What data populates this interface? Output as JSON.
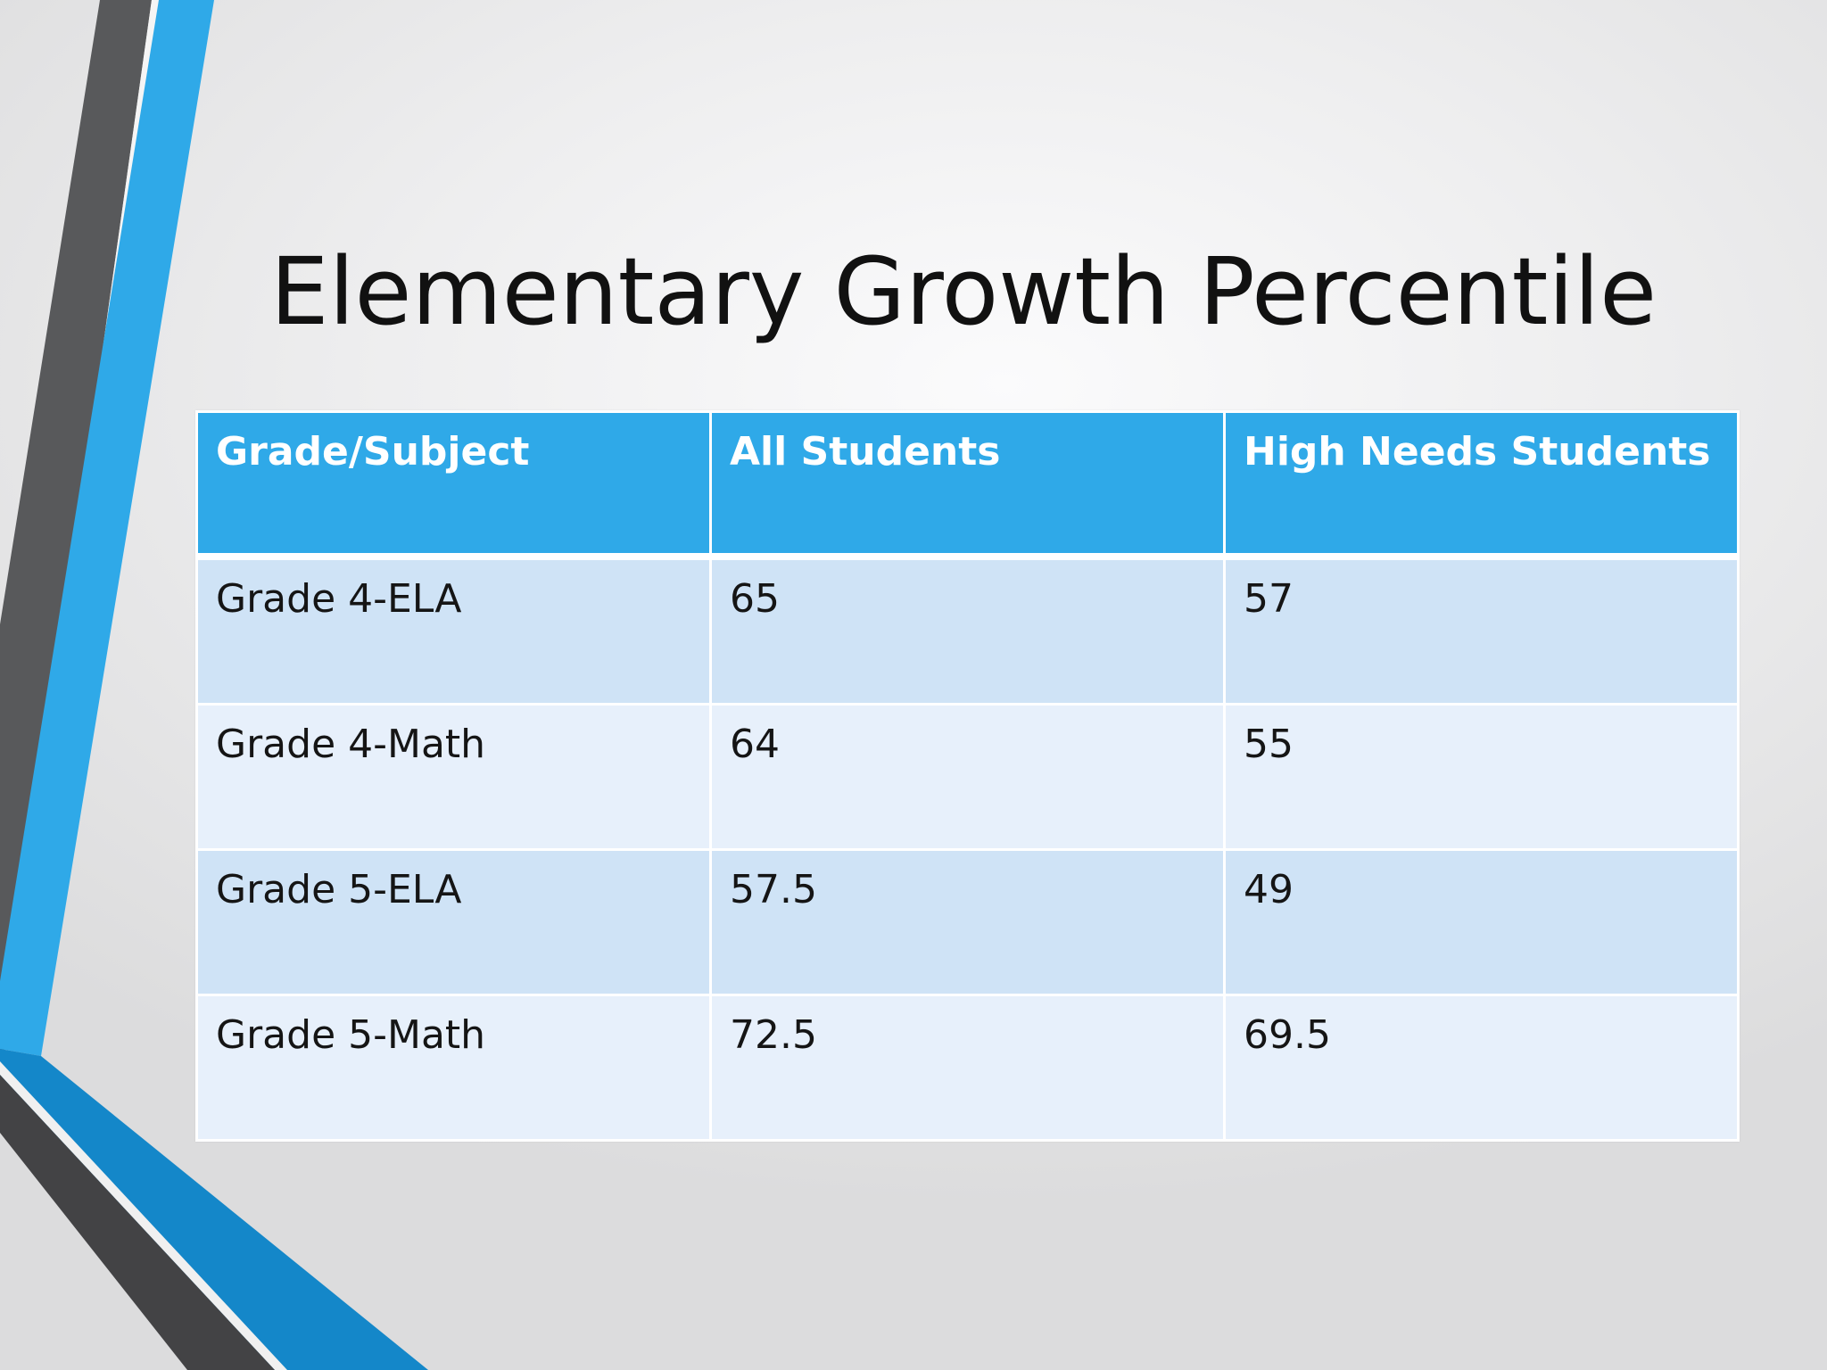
{
  "slide": {
    "title": "Elementary Growth Percentile"
  },
  "table": {
    "headers": [
      "Grade/Subject",
      "All Students",
      "High Needs Students"
    ],
    "rows": [
      [
        "Grade 4-ELA",
        "65",
        "57"
      ],
      [
        "Grade 4-Math",
        "64",
        "55"
      ],
      [
        "Grade 5-ELA",
        "57.5",
        "49"
      ],
      [
        "Grade 5-Math",
        "72.5",
        "69.5"
      ]
    ]
  },
  "colors": {
    "accent_blue": "#2fa9e8",
    "dark_blue": "#1487c9",
    "dark_gray": "#555555",
    "row_band_1": "#cfe3f6",
    "row_band_2": "#e7f0fb"
  }
}
